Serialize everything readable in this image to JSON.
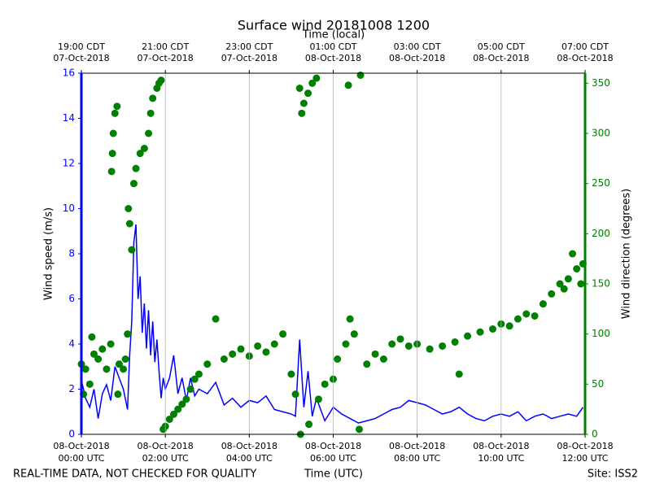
{
  "chart_data": {
    "type": "line",
    "title": "Surface wind 20181008 1200",
    "top_xlabel": "Time (local)",
    "xlabel": "Time (UTC)",
    "ylabel": "Wind speed (m/s)",
    "y2label": "Wind direction (degrees)",
    "footer_left": "REAL-TIME DATA, NOT CHECKED FOR QUALITY",
    "footer_right": "Site: ISS2",
    "xlim": [
      0,
      12
    ],
    "xticks": [
      {
        "value": 0,
        "label": [
          "08-Oct-2018",
          "00:00 UTC"
        ]
      },
      {
        "value": 2,
        "label": [
          "08-Oct-2018",
          "02:00 UTC"
        ]
      },
      {
        "value": 4,
        "label": [
          "08-Oct-2018",
          "04:00 UTC"
        ]
      },
      {
        "value": 6,
        "label": [
          "08-Oct-2018",
          "06:00 UTC"
        ]
      },
      {
        "value": 8,
        "label": [
          "08-Oct-2018",
          "08:00 UTC"
        ]
      },
      {
        "value": 10,
        "label": [
          "08-Oct-2018",
          "10:00 UTC"
        ]
      },
      {
        "value": 12,
        "label": [
          "08-Oct-2018",
          "12:00 UTC"
        ]
      }
    ],
    "xticks_top": [
      {
        "value": 0,
        "label": [
          "19:00 CDT",
          "07-Oct-2018"
        ]
      },
      {
        "value": 2,
        "label": [
          "21:00 CDT",
          "07-Oct-2018"
        ]
      },
      {
        "value": 4,
        "label": [
          "23:00 CDT",
          "07-Oct-2018"
        ]
      },
      {
        "value": 6,
        "label": [
          "01:00 CDT",
          "08-Oct-2018"
        ]
      },
      {
        "value": 8,
        "label": [
          "03:00 CDT",
          "08-Oct-2018"
        ]
      },
      {
        "value": 10,
        "label": [
          "05:00 CDT",
          "08-Oct-2018"
        ]
      },
      {
        "value": 12,
        "label": [
          "07:00 CDT",
          "08-Oct-2018"
        ]
      }
    ],
    "ylim": [
      0,
      16
    ],
    "yticks": [
      0,
      2,
      4,
      6,
      8,
      10,
      12,
      14,
      16
    ],
    "y2lim": [
      0,
      360
    ],
    "y2ticks": [
      0,
      50,
      100,
      150,
      200,
      250,
      300,
      350
    ],
    "grid": "x",
    "ycolor": "#0000ff",
    "y2color": "#008000",
    "series": [
      {
        "type": "line",
        "color": "#0000ff",
        "x": [
          0,
          0.1,
          0.2,
          0.3,
          0.4,
          0.5,
          0.6,
          0.7,
          0.8,
          0.9,
          1.0,
          1.1,
          1.15,
          1.2,
          1.25,
          1.3,
          1.35,
          1.4,
          1.45,
          1.5,
          1.55,
          1.6,
          1.65,
          1.7,
          1.75,
          1.8,
          1.85,
          1.9,
          1.95,
          2.0,
          2.1,
          2.2,
          2.3,
          2.4,
          2.5,
          2.6,
          2.7,
          2.8,
          3.0,
          3.2,
          3.4,
          3.6,
          3.8,
          4.0,
          4.2,
          4.4,
          4.6,
          4.8,
          5.0,
          5.1,
          5.2,
          5.3,
          5.4,
          5.5,
          5.6,
          5.8,
          6.0,
          6.2,
          6.4,
          6.6,
          6.8,
          7.0,
          7.2,
          7.4,
          7.6,
          7.8,
          8.0,
          8.2,
          8.4,
          8.6,
          8.8,
          9.0,
          9.2,
          9.4,
          9.6,
          9.8,
          10.0,
          10.2,
          10.4,
          10.6,
          10.8,
          11.0,
          11.2,
          11.4,
          11.6,
          11.8,
          11.95
        ],
        "values": [
          2.4,
          1.6,
          1.2,
          2.0,
          0.7,
          1.8,
          2.2,
          1.5,
          3.0,
          2.5,
          2.0,
          1.1,
          3.5,
          5.0,
          8.5,
          9.3,
          6.0,
          7.0,
          4.5,
          5.8,
          3.8,
          5.5,
          3.5,
          5.0,
          3.2,
          4.2,
          2.8,
          1.6,
          2.5,
          2.0,
          2.5,
          3.5,
          1.8,
          2.5,
          1.5,
          2.5,
          1.7,
          2.0,
          1.8,
          2.3,
          1.3,
          1.6,
          1.2,
          1.5,
          1.4,
          1.7,
          1.1,
          1.0,
          0.9,
          0.8,
          4.2,
          1.2,
          2.8,
          0.8,
          1.6,
          0.6,
          1.2,
          0.9,
          0.7,
          0.5,
          0.6,
          0.7,
          0.9,
          1.1,
          1.2,
          1.5,
          1.4,
          1.3,
          1.1,
          0.9,
          1.0,
          1.2,
          0.9,
          0.7,
          0.6,
          0.8,
          0.9,
          0.8,
          1.0,
          0.6,
          0.8,
          0.9,
          0.7,
          0.8,
          0.9,
          0.8,
          1.2
        ]
      },
      {
        "type": "scatter",
        "axis": "y2",
        "color": "#008000",
        "x": [
          0,
          0.05,
          0.1,
          0.2,
          0.25,
          0.3,
          0.4,
          0.5,
          0.6,
          0.7,
          0.72,
          0.74,
          0.76,
          0.8,
          0.85,
          0.87,
          0.9,
          1.0,
          1.05,
          1.1,
          1.12,
          1.15,
          1.2,
          1.25,
          1.3,
          1.4,
          1.5,
          1.6,
          1.65,
          1.7,
          1.8,
          1.85,
          1.9,
          1.95,
          2.0,
          2.1,
          2.2,
          2.3,
          2.4,
          2.5,
          2.6,
          2.7,
          2.8,
          3.0,
          3.2,
          3.4,
          3.6,
          3.8,
          4.0,
          4.2,
          4.4,
          4.6,
          4.8,
          5.0,
          5.1,
          5.2,
          5.22,
          5.25,
          5.3,
          5.4,
          5.42,
          5.5,
          5.6,
          5.65,
          5.8,
          6.0,
          6.1,
          6.3,
          6.36,
          6.4,
          6.5,
          6.62,
          6.65,
          6.8,
          7.0,
          7.2,
          7.4,
          7.6,
          7.8,
          8.0,
          8.3,
          8.6,
          8.9,
          9.0,
          9.2,
          9.5,
          9.8,
          10.0,
          10.2,
          10.4,
          10.6,
          10.8,
          11.0,
          11.2,
          11.4,
          11.5,
          11.6,
          11.7,
          11.8,
          11.9,
          11.95
        ],
        "values": [
          70,
          40,
          65,
          50,
          97,
          80,
          75,
          85,
          65,
          90,
          262,
          280,
          300,
          320,
          327,
          40,
          70,
          65,
          75,
          100,
          225,
          210,
          184,
          250,
          265,
          280,
          285,
          300,
          320,
          335,
          345,
          350,
          353,
          5,
          8,
          15,
          20,
          25,
          30,
          35,
          45,
          55,
          60,
          70,
          115,
          75,
          80,
          85,
          78,
          88,
          82,
          90,
          100,
          60,
          40,
          345,
          0,
          320,
          330,
          340,
          10,
          350,
          355,
          35,
          50,
          55,
          75,
          90,
          348,
          115,
          100,
          5,
          358,
          70,
          80,
          75,
          90,
          95,
          88,
          90,
          85,
          88,
          92,
          60,
          98,
          102,
          105,
          110,
          108,
          115,
          120,
          118,
          130,
          140,
          150,
          145,
          155,
          180,
          165,
          150,
          170
        ]
      }
    ]
  }
}
